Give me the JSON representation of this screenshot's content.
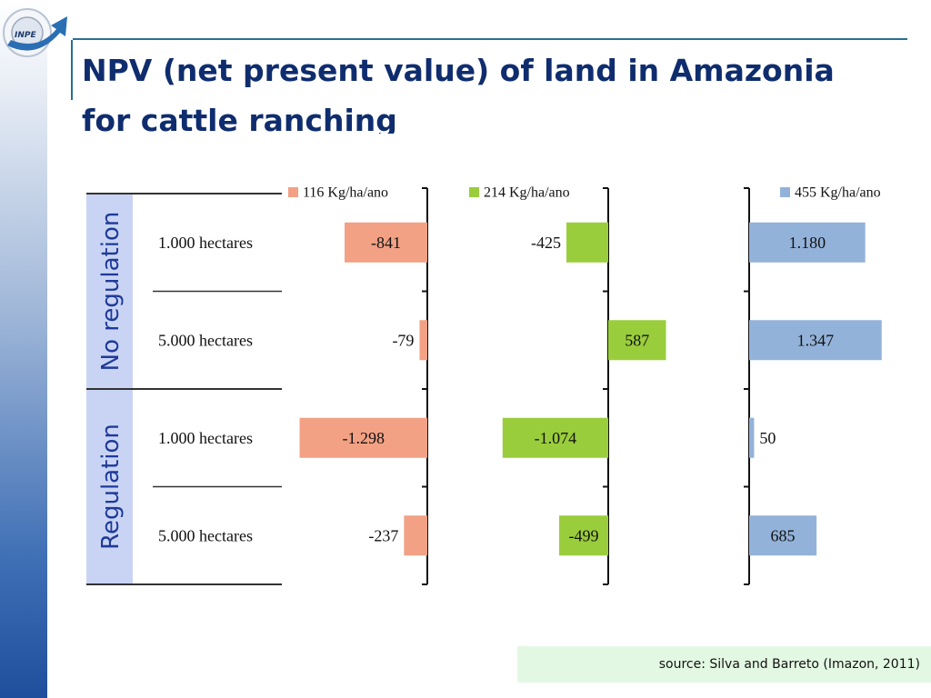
{
  "title_line1": "NPV (net present value) of land in Amazonia",
  "title_line2": "for cattle ranching",
  "logo_text": "INPE",
  "source": "source: Silva and Barreto (Imazon, 2011)",
  "colors": {
    "series_116": "#f2a184",
    "series_214": "#9acd3c",
    "series_455": "#93b2d9",
    "group_label_bg": "#c9d4f4",
    "group_label_text": "#1f3a99",
    "title": "#0f2d6e"
  },
  "chart_data": {
    "type": "bar",
    "orientation": "horizontal",
    "groups": [
      "No regulation",
      "Regulation"
    ],
    "categories": [
      "1.000 hectares",
      "5.000 hectares",
      "1.000 hectares",
      "5.000 hectares"
    ],
    "series": [
      {
        "name": "116 Kg/ha/ano",
        "values": [
          -841,
          -79,
          -1298,
          -237
        ],
        "labels": [
          "-841",
          "-79",
          "-1.298",
          "-237"
        ]
      },
      {
        "name": "214 Kg/ha/ano",
        "values": [
          -425,
          587,
          -1074,
          -499
        ],
        "labels": [
          "-425",
          "587",
          "-1.074",
          "-499"
        ]
      },
      {
        "name": "455 Kg/ha/ano",
        "values": [
          1180,
          1347,
          50,
          685
        ],
        "labels": [
          "1.180",
          "1.347",
          "50",
          "685"
        ]
      }
    ],
    "legend": "top"
  }
}
